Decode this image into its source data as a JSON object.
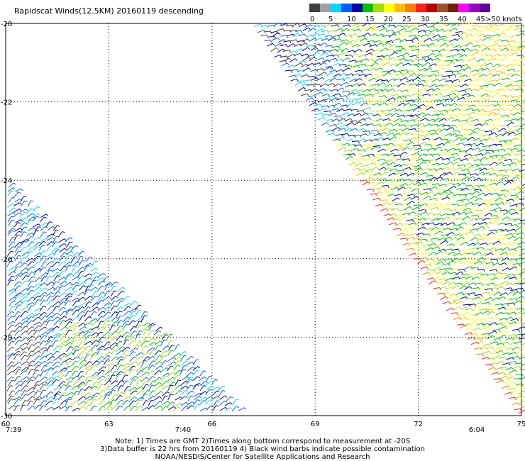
{
  "header": {
    "title": "Rapidscat Winds(12.5KM) 20160119 descending"
  },
  "legend": {
    "units_label": ">50 knots",
    "labels": [
      "0",
      "5",
      "10",
      "15",
      "20",
      "25",
      "30",
      "35",
      "40",
      "45"
    ],
    "colors": [
      "#404040",
      "#a0a0a0",
      "#00d8ff",
      "#0060ff",
      "#0000b0",
      "#00c000",
      "#a0e000",
      "#ffff00",
      "#ffc000",
      "#ff8000",
      "#ff2020",
      "#c00000",
      "#a05030",
      "#702000",
      "#ff00ff",
      "#a000c0",
      "#6000a0"
    ]
  },
  "map": {
    "lat_ticks": [
      "-20",
      "-22",
      "-24",
      "-26",
      "-28",
      "-30"
    ],
    "lon_ticks": [
      "60",
      "63",
      "66",
      "69",
      "72",
      "75"
    ],
    "times": [
      "7:39",
      "7:40",
      "6:04"
    ],
    "time_color": "#800080"
  },
  "notes": {
    "line1": "Note: 1) Times are GMT 2)Times along bottom correspond to measurement at -20S",
    "line2": "3)Data buffer is 22 hrs from 20160119 4) Black wind barbs indicate possible contamination",
    "line3": "NOAA/NESDIS/Center for Satellite Applications and Research"
  }
}
